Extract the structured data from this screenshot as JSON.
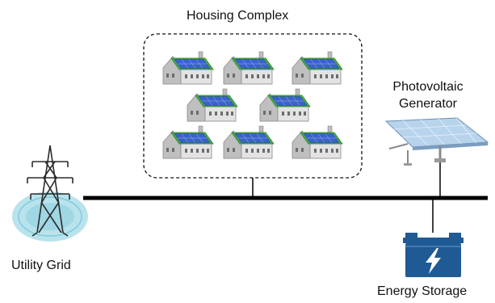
{
  "labels": {
    "housing_complex": "Housing Complex",
    "pv_line1": "Photovoltaic",
    "pv_line2": "Generator",
    "utility_grid": "Utility Grid",
    "energy_storage": "Energy Storage"
  },
  "icons": {
    "house": "house-icon",
    "solar_panel": "solar-panel-icon",
    "tower": "transmission-tower-icon",
    "battery": "battery-icon"
  },
  "colors": {
    "bus_line": "#000000",
    "roof_solar": "#3a62c8",
    "roof_frame": "#4caf50",
    "house_wall": "#d9d9d9",
    "battery_body": "#1f5a94",
    "grid_halo": "#b9e3ec"
  }
}
